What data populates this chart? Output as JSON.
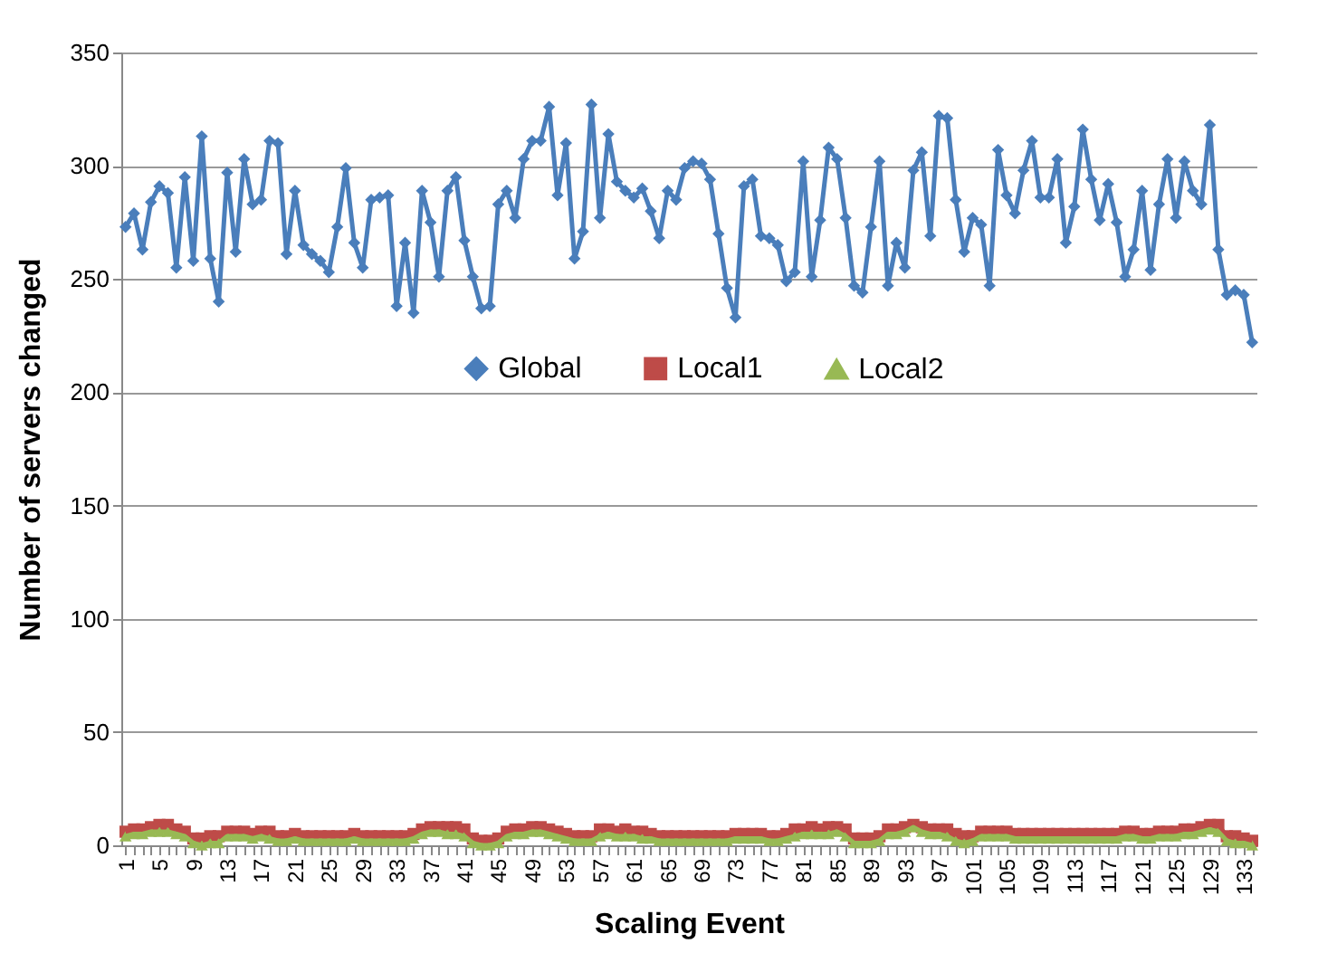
{
  "chart_data": {
    "type": "line",
    "xlabel": "Scaling Event",
    "ylabel": "Number of servers changed",
    "categories": [
      "1",
      null,
      null,
      null,
      "5",
      null,
      null,
      null,
      "9",
      null,
      null,
      null,
      "13",
      null,
      null,
      null,
      "17",
      null,
      null,
      null,
      "21",
      null,
      null,
      null,
      "25",
      null,
      null,
      null,
      "29",
      null,
      null,
      null,
      "33",
      null,
      null,
      null,
      "37",
      null,
      null,
      null,
      "41",
      null,
      null,
      null,
      "45",
      null,
      null,
      null,
      "49",
      null,
      null,
      null,
      "53",
      null,
      null,
      null,
      "57",
      null,
      null,
      null,
      "61",
      null,
      null,
      null,
      "65",
      null,
      null,
      null,
      "69",
      null,
      null,
      null,
      "73",
      null,
      null,
      null,
      "77",
      null,
      null,
      null,
      "81",
      null,
      null,
      null,
      "85",
      null,
      null,
      null,
      "89",
      null,
      null,
      null,
      "93",
      null,
      null,
      null,
      "97",
      null,
      null,
      null,
      "101",
      null,
      null,
      null,
      "105",
      null,
      null,
      null,
      "109",
      null,
      null,
      null,
      "113",
      null,
      null,
      null,
      "117",
      null,
      null,
      null,
      "121",
      null,
      null,
      null,
      "125",
      null,
      null,
      null,
      "129",
      null,
      null,
      null,
      "133",
      null
    ],
    "series": [
      {
        "name": "Global",
        "color": "#4a7ebb",
        "marker": "diamond",
        "values": [
          273,
          279,
          263,
          284,
          291,
          288,
          255,
          295,
          258,
          313,
          259,
          240,
          297,
          262,
          303,
          283,
          285,
          311,
          310,
          261,
          289,
          265,
          261,
          258,
          253,
          273,
          299,
          266,
          255,
          285,
          286,
          287,
          238,
          266,
          235,
          289,
          275,
          251,
          289,
          295,
          267,
          251,
          237,
          238,
          283,
          289,
          277,
          303,
          311,
          311,
          326,
          287,
          310,
          259,
          271,
          327,
          277,
          314,
          293,
          289,
          286,
          290,
          280,
          268,
          289,
          285,
          299,
          302,
          301,
          294,
          270,
          246,
          233,
          291,
          294,
          269,
          268,
          265,
          249,
          253,
          302,
          251,
          276,
          308,
          303,
          277,
          247,
          244,
          273,
          302,
          247,
          266,
          255,
          298,
          306,
          269,
          322,
          321,
          285,
          262,
          277,
          274,
          247,
          307,
          287,
          279,
          298,
          311,
          286,
          286,
          303,
          266,
          282,
          316,
          294,
          276,
          292,
          275,
          251,
          263,
          289,
          254,
          283,
          303,
          277,
          302,
          289,
          283,
          318,
          263,
          243,
          245,
          243,
          222
        ]
      },
      {
        "name": "Local1",
        "color": "#be4b48",
        "marker": "square",
        "values": [
          6,
          7,
          7,
          8,
          9,
          9,
          7,
          6,
          3,
          3,
          4,
          4,
          6,
          6,
          6,
          5,
          6,
          6,
          4,
          4,
          5,
          4,
          4,
          4,
          4,
          4,
          4,
          5,
          4,
          4,
          4,
          4,
          4,
          4,
          5,
          7,
          8,
          8,
          8,
          8,
          7,
          3,
          2,
          2,
          3,
          6,
          7,
          7,
          8,
          8,
          7,
          6,
          5,
          4,
          4,
          4,
          7,
          7,
          6,
          7,
          6,
          6,
          5,
          4,
          4,
          4,
          4,
          4,
          4,
          4,
          4,
          4,
          5,
          5,
          5,
          5,
          4,
          4,
          5,
          7,
          7,
          8,
          7,
          8,
          8,
          7,
          3,
          3,
          3,
          4,
          7,
          7,
          8,
          9,
          8,
          7,
          7,
          7,
          5,
          4,
          4,
          6,
          6,
          6,
          6,
          5,
          5,
          5,
          5,
          5,
          5,
          5,
          5,
          5,
          5,
          5,
          5,
          5,
          6,
          6,
          5,
          5,
          6,
          6,
          6,
          7,
          7,
          8,
          9,
          9,
          4,
          4,
          3,
          2
        ]
      },
      {
        "name": "Local2",
        "color": "#98b954",
        "marker": "triangle",
        "values": [
          4,
          5,
          5,
          6,
          6,
          6,
          5,
          4,
          1,
          0,
          1,
          1,
          4,
          4,
          4,
          3,
          4,
          3,
          2,
          2,
          3,
          2,
          2,
          2,
          2,
          2,
          2,
          3,
          2,
          2,
          2,
          2,
          2,
          2,
          3,
          5,
          6,
          6,
          5,
          5,
          4,
          1,
          0,
          0,
          1,
          4,
          5,
          5,
          6,
          6,
          5,
          4,
          3,
          2,
          2,
          2,
          4,
          5,
          4,
          4,
          4,
          3,
          3,
          2,
          2,
          2,
          2,
          2,
          2,
          2,
          2,
          2,
          3,
          3,
          3,
          3,
          2,
          2,
          3,
          4,
          5,
          5,
          5,
          5,
          6,
          4,
          1,
          1,
          1,
          2,
          5,
          5,
          6,
          8,
          6,
          5,
          5,
          4,
          2,
          1,
          2,
          4,
          4,
          4,
          4,
          3,
          3,
          3,
          3,
          3,
          3,
          3,
          3,
          3,
          3,
          3,
          3,
          3,
          4,
          4,
          3,
          3,
          4,
          4,
          4,
          5,
          5,
          6,
          7,
          6,
          2,
          1,
          1,
          0
        ]
      }
    ],
    "ylim": [
      0,
      350
    ],
    "yticks": [
      0,
      50,
      100,
      150,
      200,
      250,
      300,
      350
    ],
    "grid": "y",
    "legend": "center"
  }
}
